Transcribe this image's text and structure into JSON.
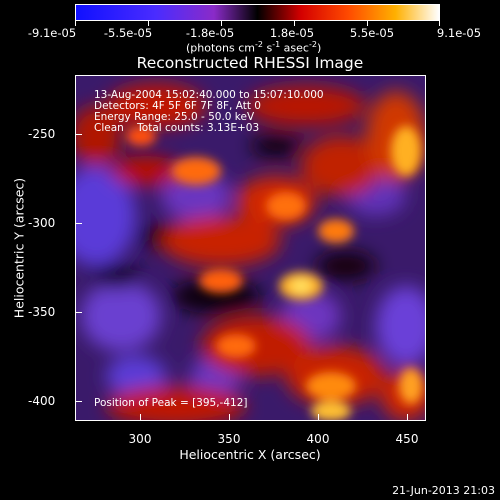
{
  "colorbar": {
    "tick_labels": [
      "-9.1e-05",
      "-5.5e-05",
      "-1.8e-05",
      "1.8e-05",
      "5.5e-05",
      "9.1e-05"
    ],
    "units_main": "(photons cm",
    "units_exp1": "-2",
    "units_s": " s",
    "units_exp2": "-1",
    "units_asec": " asec",
    "units_exp3": "-2",
    "units_end": ")"
  },
  "title": "Reconstructed RHESSI Image",
  "annotations": {
    "line1": "13-Aug-2004 15:02:40.000 to 15:07:10.000",
    "line2": "Detectors: 4F 5F 6F 7F 8F, Att 0",
    "line3": "Energy Range: 25.0 - 50.0 keV",
    "line4": "Clean    Total counts: 3.13E+03",
    "peak": "Position of Peak = [395,-412]"
  },
  "axes": {
    "xlabel": "Heliocentric X (arcsec)",
    "ylabel": "Heliocentric Y (arcsec)",
    "xticks": [
      "300",
      "350",
      "400",
      "450"
    ],
    "yticks": [
      "-250",
      "-300",
      "-350",
      "-400"
    ],
    "xlim": [
      265,
      455
    ],
    "ylim": [
      -417,
      -227
    ]
  },
  "timestamp": "21-Jun-2013 21:03"
}
